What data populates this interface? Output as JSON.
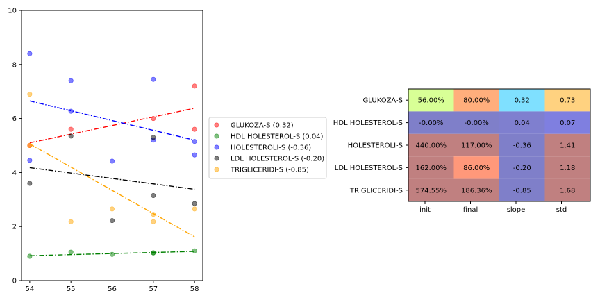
{
  "chart_data": [
    {
      "type": "scatter",
      "xlim": [
        53.8,
        58.2
      ],
      "ylim": [
        0,
        10
      ],
      "x_ticks": [
        54,
        55,
        56,
        57,
        58
      ],
      "y_ticks": [
        0,
        2,
        4,
        6,
        8,
        10
      ],
      "legend_position": "right",
      "grid": false,
      "series": [
        {
          "name": "GLUKOZA-S (0.32)",
          "color": "#ff0000",
          "points": [
            [
              54,
              5.0
            ],
            [
              55,
              5.6
            ],
            [
              57,
              6.0
            ],
            [
              58,
              7.2
            ],
            [
              58,
              5.6
            ]
          ],
          "trend": [
            [
              54,
              5.1
            ],
            [
              58,
              6.38
            ]
          ]
        },
        {
          "name": "HDL HOLESTEROL-S (0.04)",
          "color": "#008000",
          "points": [
            [
              54,
              0.9
            ],
            [
              55,
              1.05
            ],
            [
              56,
              0.97
            ],
            [
              57,
              1.02
            ],
            [
              57,
              1.03
            ],
            [
              58,
              1.1
            ]
          ],
          "trend": [
            [
              54,
              0.92
            ],
            [
              58,
              1.08
            ]
          ]
        },
        {
          "name": "HOLESTEROLI-S (-0.36)",
          "color": "#0000ff",
          "points": [
            [
              54,
              8.4
            ],
            [
              54,
              4.45
            ],
            [
              55,
              7.4
            ],
            [
              55,
              6.27
            ],
            [
              56,
              4.42
            ],
            [
              57,
              7.45
            ],
            [
              57,
              5.2
            ],
            [
              58,
              5.15
            ],
            [
              58,
              4.65
            ]
          ],
          "trend": [
            [
              54,
              6.65
            ],
            [
              58,
              5.2
            ]
          ]
        },
        {
          "name": "LDL HOLESTEROL-S (-0.20)",
          "color": "#000000",
          "points": [
            [
              54,
              3.6
            ],
            [
              55,
              5.35
            ],
            [
              56,
              2.22
            ],
            [
              57,
              5.3
            ],
            [
              57,
              3.15
            ],
            [
              58,
              2.85
            ]
          ],
          "trend": [
            [
              54,
              4.18
            ],
            [
              58,
              3.38
            ]
          ]
        },
        {
          "name": "TRIGLICERIDI-S (-0.85)",
          "color": "#ffa500",
          "points": [
            [
              54,
              6.9
            ],
            [
              54,
              5.0
            ],
            [
              55,
              2.18
            ],
            [
              56,
              2.65
            ],
            [
              57,
              2.45
            ],
            [
              57,
              2.18
            ],
            [
              58,
              2.65
            ]
          ],
          "trend": [
            [
              54,
              5.06
            ],
            [
              58,
              1.62
            ]
          ]
        }
      ]
    },
    {
      "type": "table",
      "columns": [
        "init",
        "final",
        "slope",
        "std"
      ],
      "rows": [
        {
          "label": "GLUKOZA-S",
          "cells": [
            {
              "text": "56.00%",
              "color": "#d8ff96"
            },
            {
              "text": "80.00%",
              "color": "#ffae7c"
            },
            {
              "text": "0.32",
              "color": "#7fe0ff"
            },
            {
              "text": "0.73",
              "color": "#ffd280"
            }
          ]
        },
        {
          "label": "HDL HOLESTEROL-S",
          "cells": [
            {
              "text": "-0.00%",
              "color": "#7f7fc9"
            },
            {
              "text": "-0.00%",
              "color": "#7f7fc9"
            },
            {
              "text": "0.04",
              "color": "#7f7fcf"
            },
            {
              "text": "0.07",
              "color": "#7f7fe0"
            }
          ]
        },
        {
          "label": "HOLESTEROLI-S",
          "cells": [
            {
              "text": "440.00%",
              "color": "#c08080"
            },
            {
              "text": "117.00%",
              "color": "#c08080"
            },
            {
              "text": "-0.36",
              "color": "#7f7fc9"
            },
            {
              "text": "1.41",
              "color": "#c08080"
            }
          ]
        },
        {
          "label": "LDL HOLESTEROL-S",
          "cells": [
            {
              "text": "162.00%",
              "color": "#c08080"
            },
            {
              "text": "86.00%",
              "color": "#ff987a"
            },
            {
              "text": "-0.20",
              "color": "#7f7fc9"
            },
            {
              "text": "1.18",
              "color": "#c08080"
            }
          ]
        },
        {
          "label": "TRIGLICERIDI-S",
          "cells": [
            {
              "text": "574.55%",
              "color": "#c08080"
            },
            {
              "text": "186.36%",
              "color": "#c08080"
            },
            {
              "text": "-0.85",
              "color": "#7f7fc9"
            },
            {
              "text": "1.68",
              "color": "#c08080"
            }
          ]
        }
      ]
    }
  ]
}
